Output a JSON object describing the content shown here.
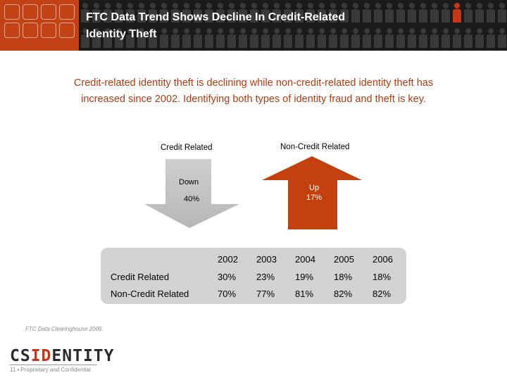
{
  "slide": {
    "title_line1": "FTC Data Trend Shows Decline In Credit-Related",
    "title_line2": "Identity Theft",
    "intro_line1": "Credit-related identity theft is declining while non-credit-related identity theft has",
    "intro_line2": "increased since 2002.  Identifying both types of identity fraud and theft is key."
  },
  "trend": {
    "credit_label": "Credit Related",
    "noncredit_label": "Non-Credit Related",
    "down_label": "Down",
    "down_value": "40%",
    "up_label": "Up",
    "up_value": "17%",
    "down_color": "#c8c8c8",
    "up_color": "#c2410f"
  },
  "table": {
    "years": [
      "2002",
      "2003",
      "2004",
      "2005",
      "2006"
    ],
    "rows": [
      {
        "label": "Credit Related",
        "values": [
          "30%",
          "23%",
          "19%",
          "18%",
          "18%"
        ]
      },
      {
        "label": "Non-Credit Related",
        "values": [
          "70%",
          "77%",
          "81%",
          "82%",
          "82%"
        ]
      }
    ]
  },
  "footer": {
    "source": "FTC Data Clearinghouse 2006.",
    "brand_part1": "CS",
    "brand_part2": "ID",
    "brand_part3": "ENTITY",
    "page_line": "11  •  Proprietary and Confidential"
  },
  "colors": {
    "header_bg": "#1b1b1b",
    "accent": "#c24216",
    "intro_text": "#b23a12"
  }
}
